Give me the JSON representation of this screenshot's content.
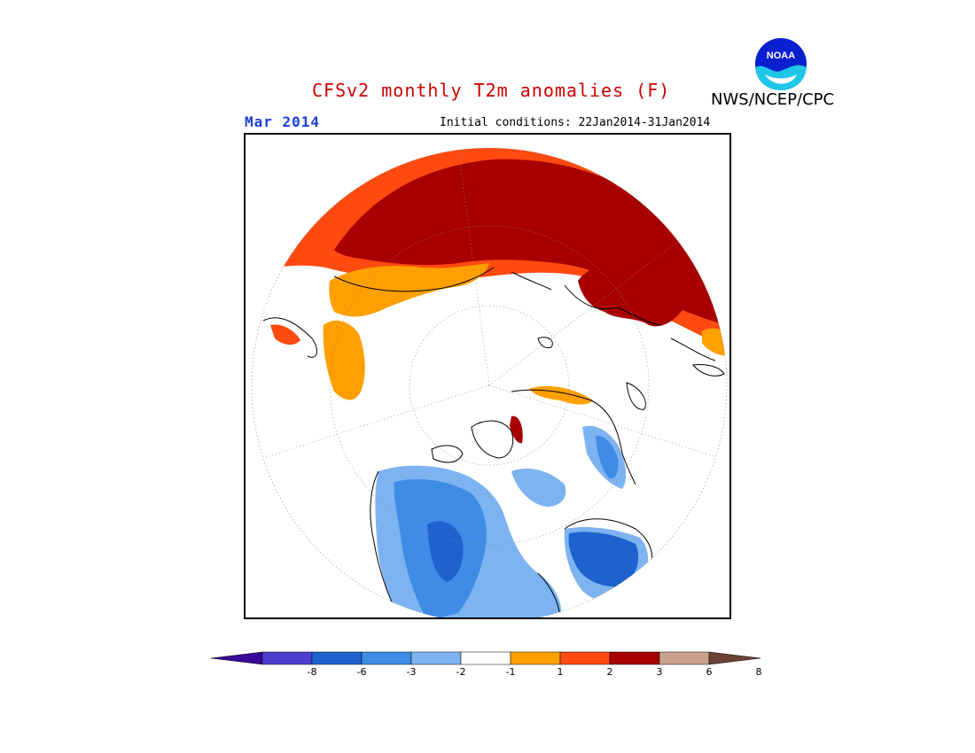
{
  "title": "CFSv2 monthly T2m anomalies (F)",
  "month": "Mar 2014",
  "initial_conditions": "Initial conditions: 22Jan2014-31Jan2014",
  "agency": "NWS/NCEP/CPC",
  "logo": {
    "text": "NOAA",
    "icon": "noaa-logo"
  },
  "colors": {
    "title": "#cc0000",
    "month": "#1a3fd6",
    "bins": [
      "#3a0b96",
      "#4c3fcf",
      "#1e62cf",
      "#3f8ce6",
      "#7db3f0",
      "#ffffff",
      "#ff9f00",
      "#ff4a10",
      "#a80000",
      "#c9a08c",
      "#6b4234"
    ]
  },
  "legend": {
    "ticks": [
      "-8",
      "-6",
      "-3",
      "-2",
      "-1",
      "1",
      "2",
      "3",
      "6",
      "8"
    ]
  }
}
